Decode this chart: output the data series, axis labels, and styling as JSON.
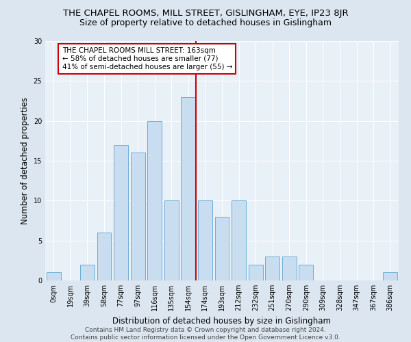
{
  "title": "THE CHAPEL ROOMS, MILL STREET, GISLINGHAM, EYE, IP23 8JR",
  "subtitle": "Size of property relative to detached houses in Gislingham",
  "xlabel": "Distribution of detached houses by size in Gislingham",
  "ylabel": "Number of detached properties",
  "bin_labels": [
    "0sqm",
    "19sqm",
    "39sqm",
    "58sqm",
    "77sqm",
    "97sqm",
    "116sqm",
    "135sqm",
    "154sqm",
    "174sqm",
    "193sqm",
    "212sqm",
    "232sqm",
    "251sqm",
    "270sqm",
    "290sqm",
    "309sqm",
    "328sqm",
    "347sqm",
    "367sqm",
    "386sqm"
  ],
  "bar_values": [
    1,
    0,
    2,
    6,
    17,
    16,
    20,
    10,
    23,
    10,
    8,
    10,
    2,
    3,
    3,
    2,
    0,
    0,
    0,
    0,
    1
  ],
  "highlight_index": 8,
  "bar_color": "#c9ddf0",
  "bar_edge_color": "#6aaed6",
  "vline_color": "#cc0000",
  "annotation_text": "THE CHAPEL ROOMS MILL STREET: 163sqm\n← 58% of detached houses are smaller (77)\n41% of semi-detached houses are larger (55) →",
  "annotation_box_facecolor": "#ffffff",
  "annotation_box_edgecolor": "#cc0000",
  "ylim": [
    0,
    30
  ],
  "yticks": [
    0,
    5,
    10,
    15,
    20,
    25,
    30
  ],
  "background_color": "#dce6f0",
  "plot_background_color": "#e8f0f8",
  "footer_line1": "Contains HM Land Registry data © Crown copyright and database right 2024.",
  "footer_line2": "Contains public sector information licensed under the Open Government Licence v3.0.",
  "title_fontsize": 9.5,
  "subtitle_fontsize": 9,
  "axis_label_fontsize": 8.5,
  "tick_fontsize": 7,
  "annotation_fontsize": 7.5,
  "footer_fontsize": 6.5
}
